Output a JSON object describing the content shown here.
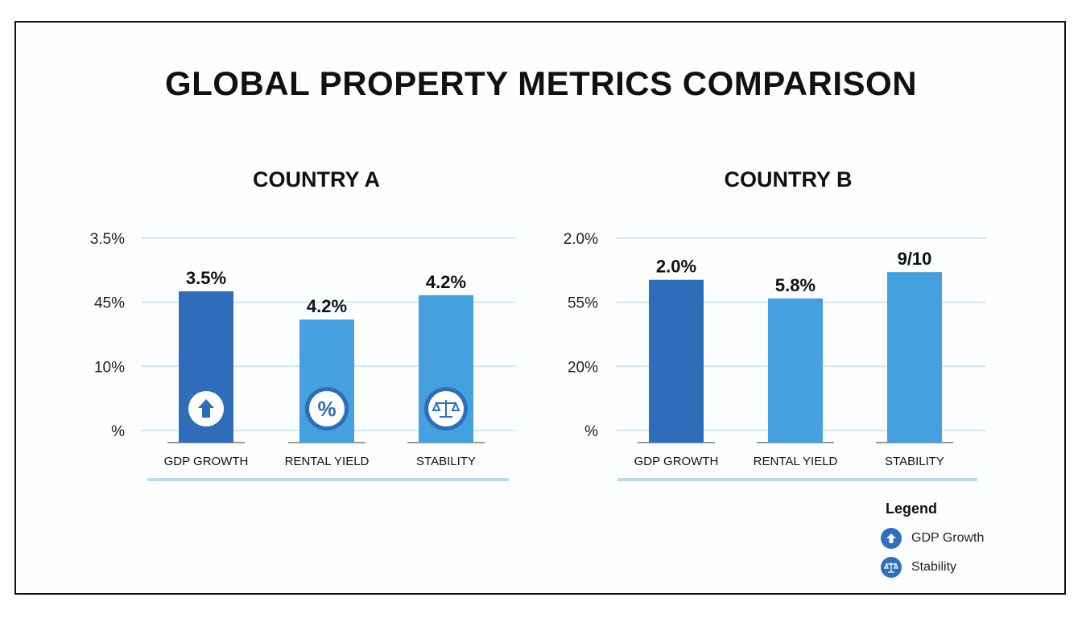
{
  "title": "GLOBAL PROPERTY METRICS COMPARISON",
  "colors": {
    "gdp": "#2f6dbb",
    "other": "#44a0de",
    "grid": "#cfe6f5",
    "underline": "#b8daf2"
  },
  "chart_data": [
    {
      "type": "bar",
      "title": "COUNTRY A",
      "categories": [
        "GDP GROWTH",
        "RENTAL YIELD",
        "STABILITY"
      ],
      "y_tick_labels": [
        "%",
        "10%",
        "45%",
        "3.5%"
      ],
      "y_tick_index": [
        0,
        1,
        2,
        3
      ],
      "values_index_units": [
        2.17,
        1.73,
        2.11
      ],
      "data_labels": [
        "3.5%",
        "4.2%",
        "4.2%"
      ],
      "bar_icons": [
        "arrow-up-icon",
        "percent-icon",
        "scale-icon"
      ],
      "grid": true
    },
    {
      "type": "bar",
      "title": "COUNTRY B",
      "categories": [
        "GDP GROWTH",
        "RENTAL YIELD",
        "STABILITY"
      ],
      "y_tick_labels": [
        "%",
        "20%",
        "55%",
        "2.0%"
      ],
      "y_tick_index": [
        0,
        1,
        2,
        3
      ],
      "values_index_units": [
        2.35,
        2.06,
        2.47
      ],
      "data_labels": [
        "2.0%",
        "5.8%",
        "9/10"
      ],
      "bar_icons": [],
      "grid": true
    }
  ],
  "legend": {
    "title": "Legend",
    "items": [
      {
        "label": "GDP Growth",
        "icon": "arrow-up-icon"
      },
      {
        "label": "Stability",
        "icon": "scale-icon"
      }
    ]
  }
}
